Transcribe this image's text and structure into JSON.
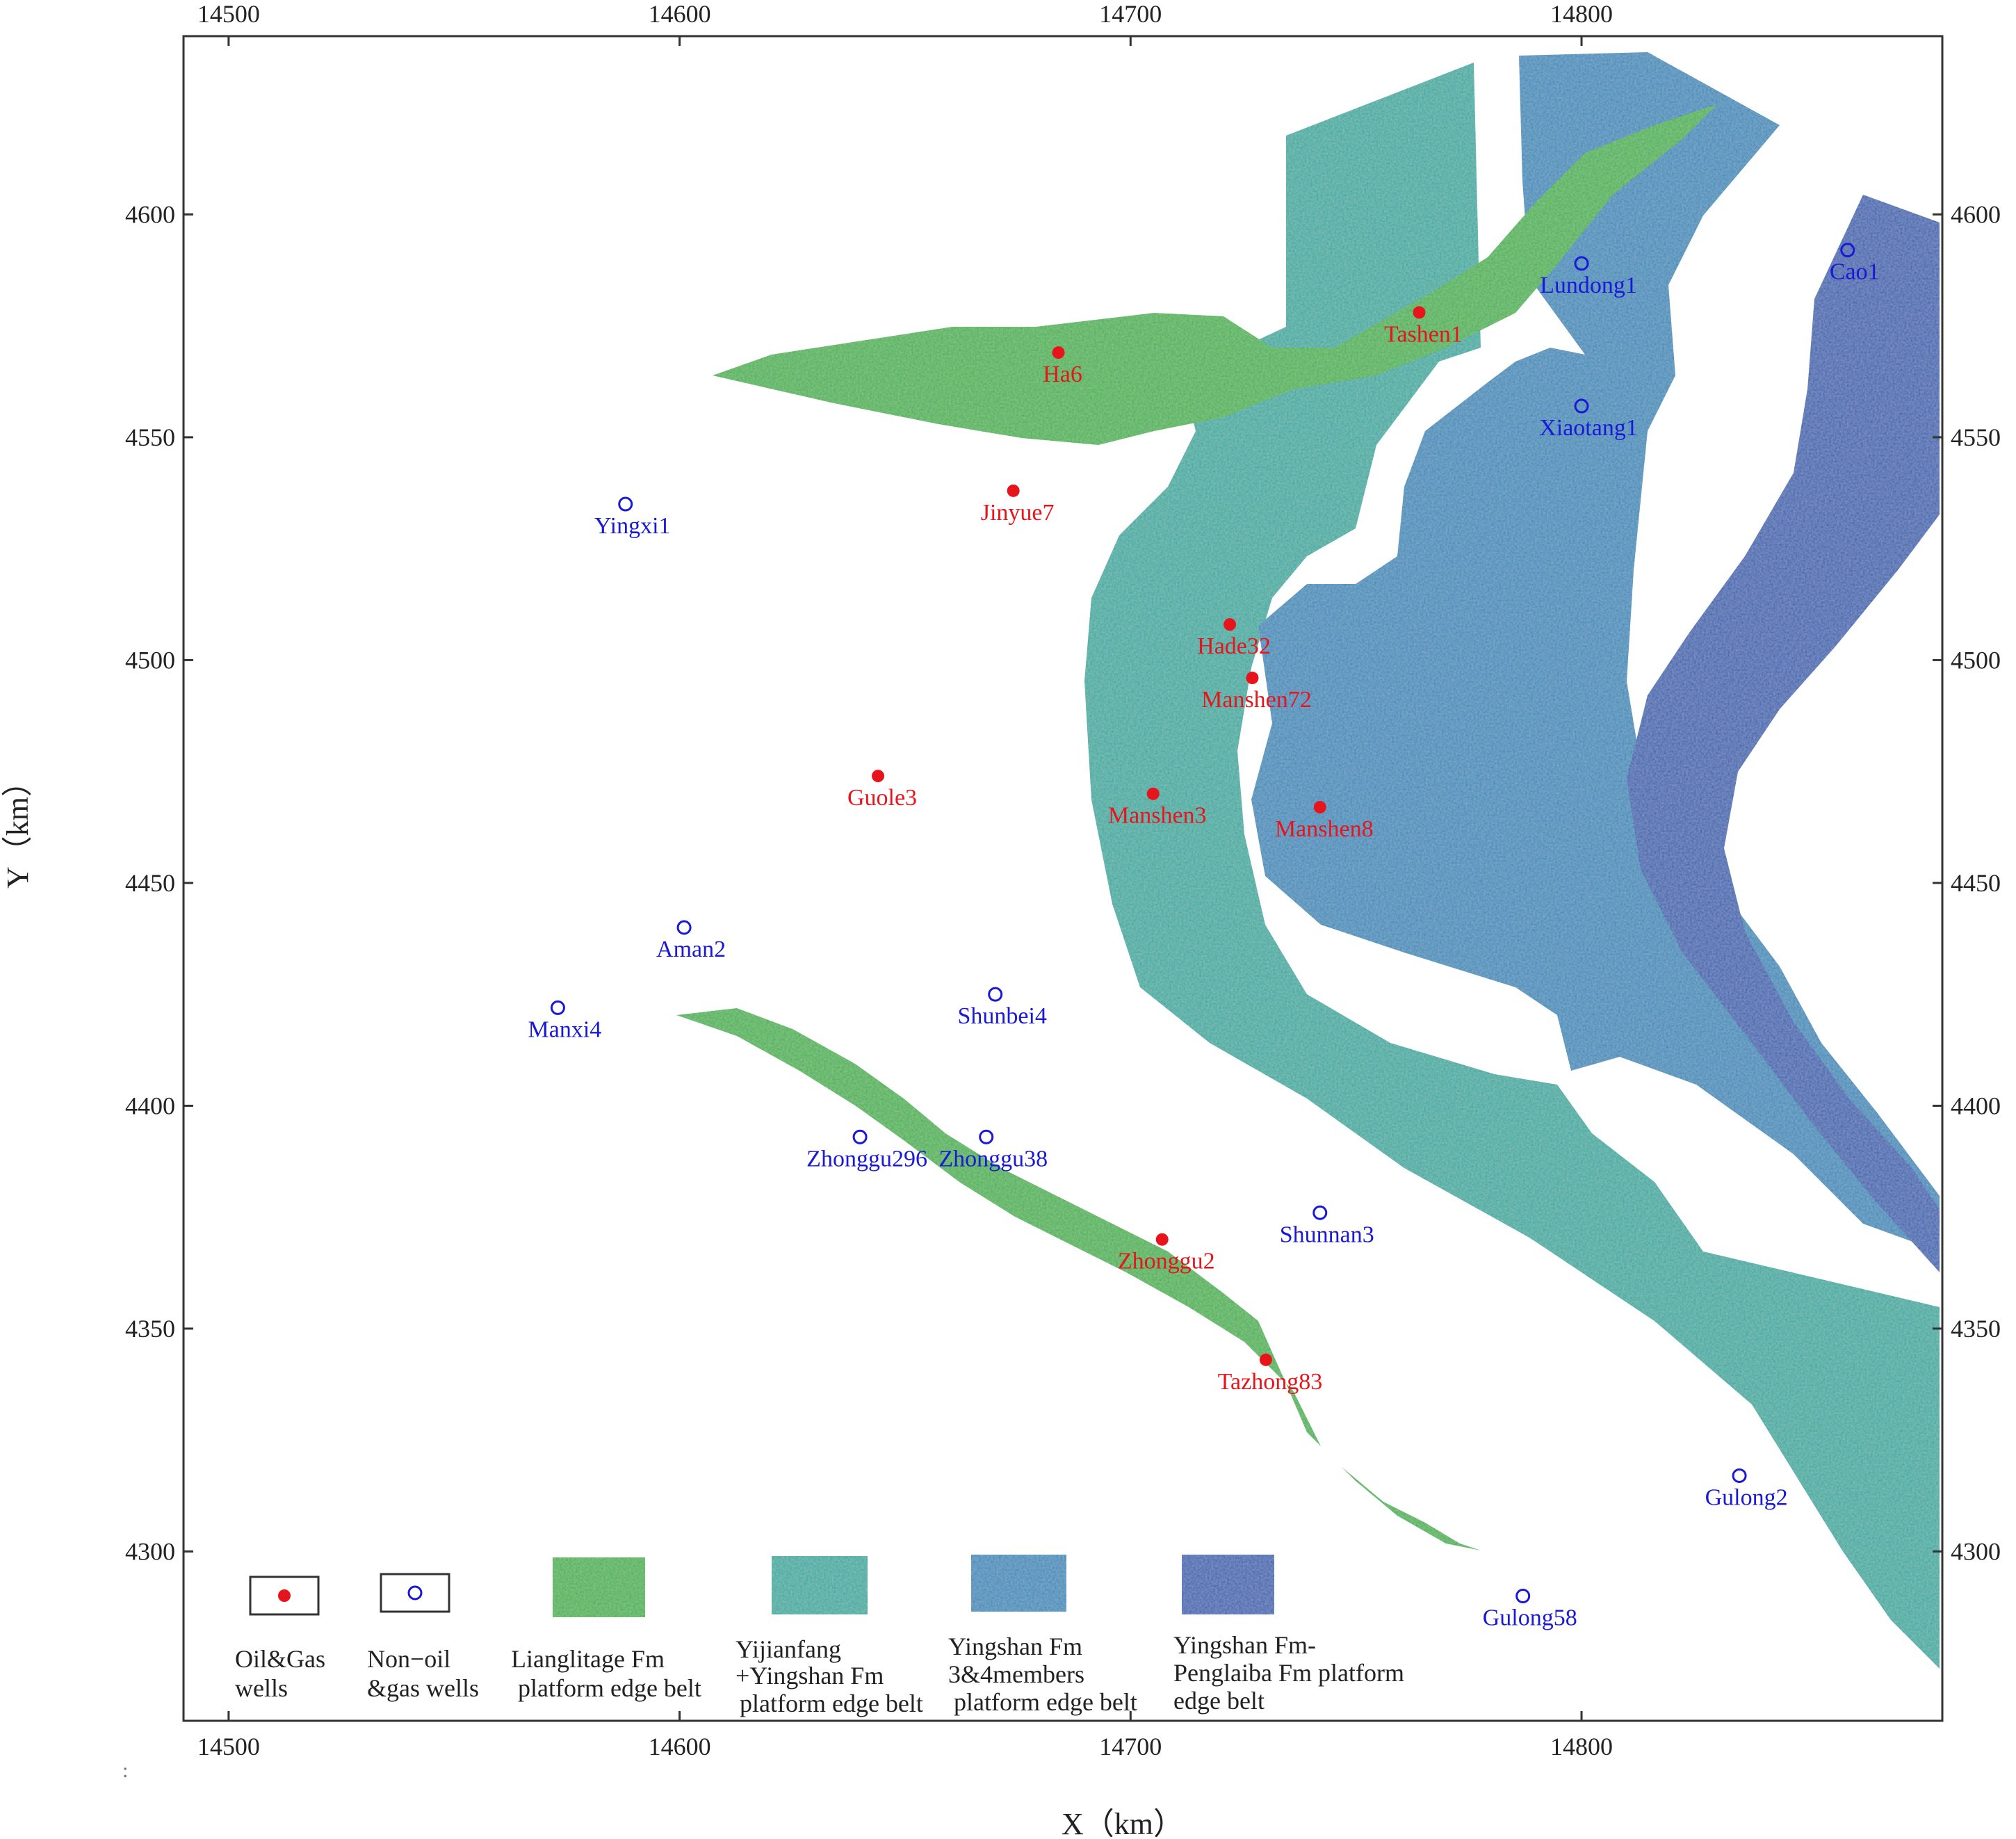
{
  "axes": {
    "x_label": "X（km）",
    "y_label": "Y（km）",
    "x_range": [
      14490,
      14880
    ],
    "y_range": [
      4262,
      4640
    ],
    "x_ticks": [
      14500,
      14600,
      14700,
      14800
    ],
    "y_ticks": [
      4300,
      4350,
      4400,
      4450,
      4500,
      4550,
      4600
    ],
    "x_ticks_top": [
      "14500",
      "14600",
      "14700",
      "14800"
    ],
    "x_ticks_bottom": [
      "14500",
      "14600",
      "14700",
      "14800"
    ],
    "y_ticks_left": [
      "4300",
      "4350",
      "4400",
      "4450",
      "4500",
      "4550",
      "4600"
    ],
    "y_ticks_right": [
      "4300",
      "4350",
      "4400",
      "4450",
      "4500",
      "4550",
      "4600"
    ]
  },
  "colors": {
    "lianglitage": "#3fb04a",
    "yijianfang": "#2aa89e",
    "yingshan34": "#2f88b8",
    "yingshan_penglaiba": "#2f5fae",
    "oil_well": "#e8141b",
    "nonoil_well": "#1a1ad6"
  },
  "wells": {
    "oil_gas": [
      {
        "name": "Ha6",
        "x": 14684,
        "y": 4569
      },
      {
        "name": "Tashen1",
        "x": 14764,
        "y": 4578
      },
      {
        "name": "Jinyue7",
        "x": 14674,
        "y": 4538
      },
      {
        "name": "Hade32",
        "x": 14722,
        "y": 4508
      },
      {
        "name": "Manshen72",
        "x": 14727,
        "y": 4496
      },
      {
        "name": "Guole3",
        "x": 14644,
        "y": 4474
      },
      {
        "name": "Manshen3",
        "x": 14705,
        "y": 4470
      },
      {
        "name": "Manshen8",
        "x": 14742,
        "y": 4467
      },
      {
        "name": "Zhonggu2",
        "x": 14707,
        "y": 4370
      },
      {
        "name": "Tazhong83",
        "x": 14730,
        "y": 4343
      }
    ],
    "non_oil": [
      {
        "name": "Lundong1",
        "x": 14800,
        "y": 4589
      },
      {
        "name": "Cao1",
        "x": 14859,
        "y": 4592
      },
      {
        "name": "Xiaotang1",
        "x": 14800,
        "y": 4557
      },
      {
        "name": "Yingxi1",
        "x": 14588,
        "y": 4535
      },
      {
        "name": "Aman2",
        "x": 14601,
        "y": 4440
      },
      {
        "name": "Manxi4",
        "x": 14573,
        "y": 4422
      },
      {
        "name": "Shunbei4",
        "x": 14670,
        "y": 4425
      },
      {
        "name": "Zhonggu296",
        "x": 14640,
        "y": 4393
      },
      {
        "name": "Zhonggu38",
        "x": 14668,
        "y": 4393
      },
      {
        "name": "Shunnan3",
        "x": 14742,
        "y": 4376
      },
      {
        "name": "Gulong2",
        "x": 14835,
        "y": 4317
      },
      {
        "name": "Gulong58",
        "x": 14787,
        "y": 4290
      }
    ]
  },
  "legend": {
    "oil_gas": [
      "Oil&Gas",
      "wells"
    ],
    "non_oil": [
      "Non−oil",
      "&gas  wells"
    ],
    "lianglitage": [
      "Lianglitage Fm",
      "platform edge belt"
    ],
    "yijianfang": [
      "Yijianfang",
      "+Yingshan Fm",
      "platform edge belt"
    ],
    "yingshan34": [
      "Yingshan Fm",
      "3&4members",
      "platform edge belt"
    ],
    "penglaiba": [
      "Yingshan Fm-",
      "Penglaiba Fm platform",
      "edge belt"
    ]
  },
  "stray_mark": ":"
}
